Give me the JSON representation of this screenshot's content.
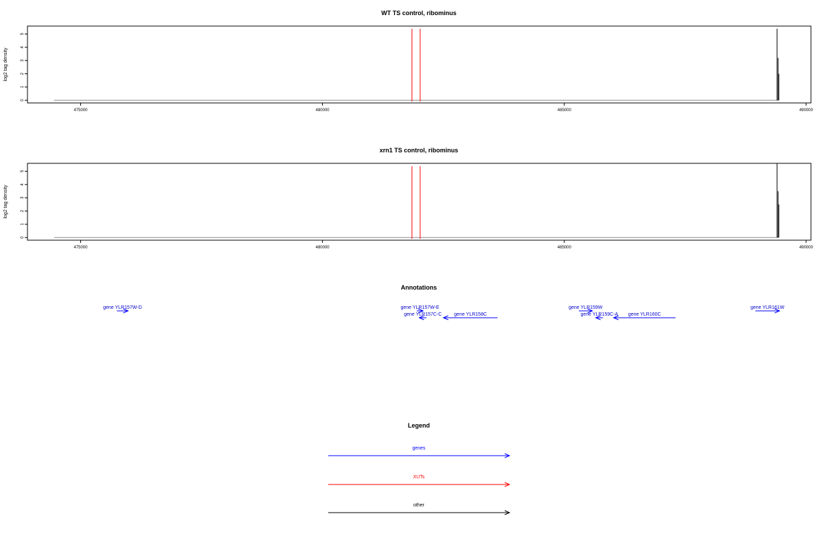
{
  "chart_data": [
    {
      "type": "line",
      "title": "WT TS control, ribominus",
      "ylabel": "log2 tag density",
      "xlim": [
        473900,
        490100
      ],
      "ylim": [
        -0.2,
        5.6
      ],
      "x_ticks": [
        475000,
        480000,
        485000,
        490000
      ],
      "x_tick_labels": [
        "475000",
        "480000",
        "485000",
        "490000"
      ],
      "y_ticks": [
        0,
        1,
        2,
        3,
        4,
        5
      ],
      "y_tick_labels": [
        "0",
        "1",
        "2",
        "3",
        "4",
        "5"
      ],
      "baseline": {
        "x_start": 474450,
        "x_end": 489430,
        "y": 0
      },
      "xut_lines": [
        481850,
        482020
      ],
      "black_spikes": [
        {
          "x": 489400,
          "y": 5.4
        },
        {
          "x": 489420,
          "y": 3.2
        },
        {
          "x": 489435,
          "y": 2.0
        }
      ]
    },
    {
      "type": "line",
      "title": "xrn1 TS control, ribominus",
      "ylabel": "log2 tag density",
      "xlim": [
        473900,
        490100
      ],
      "ylim": [
        -0.2,
        5.6
      ],
      "x_ticks": [
        475000,
        480000,
        485000,
        490000
      ],
      "x_tick_labels": [
        "475000",
        "480000",
        "485000",
        "490000"
      ],
      "y_ticks": [
        0,
        1,
        2,
        3,
        4,
        5
      ],
      "y_tick_labels": [
        "0",
        "1",
        "2",
        "3",
        "4",
        "5"
      ],
      "baseline": {
        "x_start": 474450,
        "x_end": 489430,
        "y": 0
      },
      "xut_lines": [
        481850,
        482020
      ],
      "black_spikes": [
        {
          "x": 489400,
          "y": 5.6
        },
        {
          "x": 489420,
          "y": 3.5
        },
        {
          "x": 489435,
          "y": 2.5
        }
      ]
    }
  ],
  "annotations": {
    "title": "Annotations",
    "genes": [
      {
        "label": "gene YLR157W-D",
        "start": 475750,
        "end": 475980,
        "strand": "+",
        "row": 0
      },
      {
        "label": "gene YLR157W-E",
        "start": 481950,
        "end": 482080,
        "strand": "+",
        "row": 0
      },
      {
        "label": "gene YLR157C-C",
        "start": 482000,
        "end": 482150,
        "strand": "-",
        "row": 1
      },
      {
        "label": "gene YLR158C",
        "start": 482500,
        "end": 483620,
        "strand": "-",
        "row": 1
      },
      {
        "label": "gene YLR159W",
        "start": 485300,
        "end": 485580,
        "strand": "+",
        "row": 0
      },
      {
        "label": "gene YLR159C-A",
        "start": 485650,
        "end": 485800,
        "strand": "-",
        "row": 1
      },
      {
        "label": "gene YLR160C",
        "start": 486020,
        "end": 487300,
        "strand": "-",
        "row": 1
      },
      {
        "label": "gene YLR161W",
        "start": 488950,
        "end": 489450,
        "strand": "+",
        "row": 0
      }
    ]
  },
  "legend": {
    "title": "Legend",
    "items": [
      {
        "label": "genes",
        "color": "#0000ff"
      },
      {
        "label": "XUTs",
        "color": "#ff0000"
      },
      {
        "label": "other",
        "color": "#000000"
      }
    ]
  },
  "colors": {
    "genes": "#0000ff",
    "genes_text": "#0000cc",
    "xut": "#ff0000",
    "other": "#000000",
    "baseline": "#888888"
  }
}
